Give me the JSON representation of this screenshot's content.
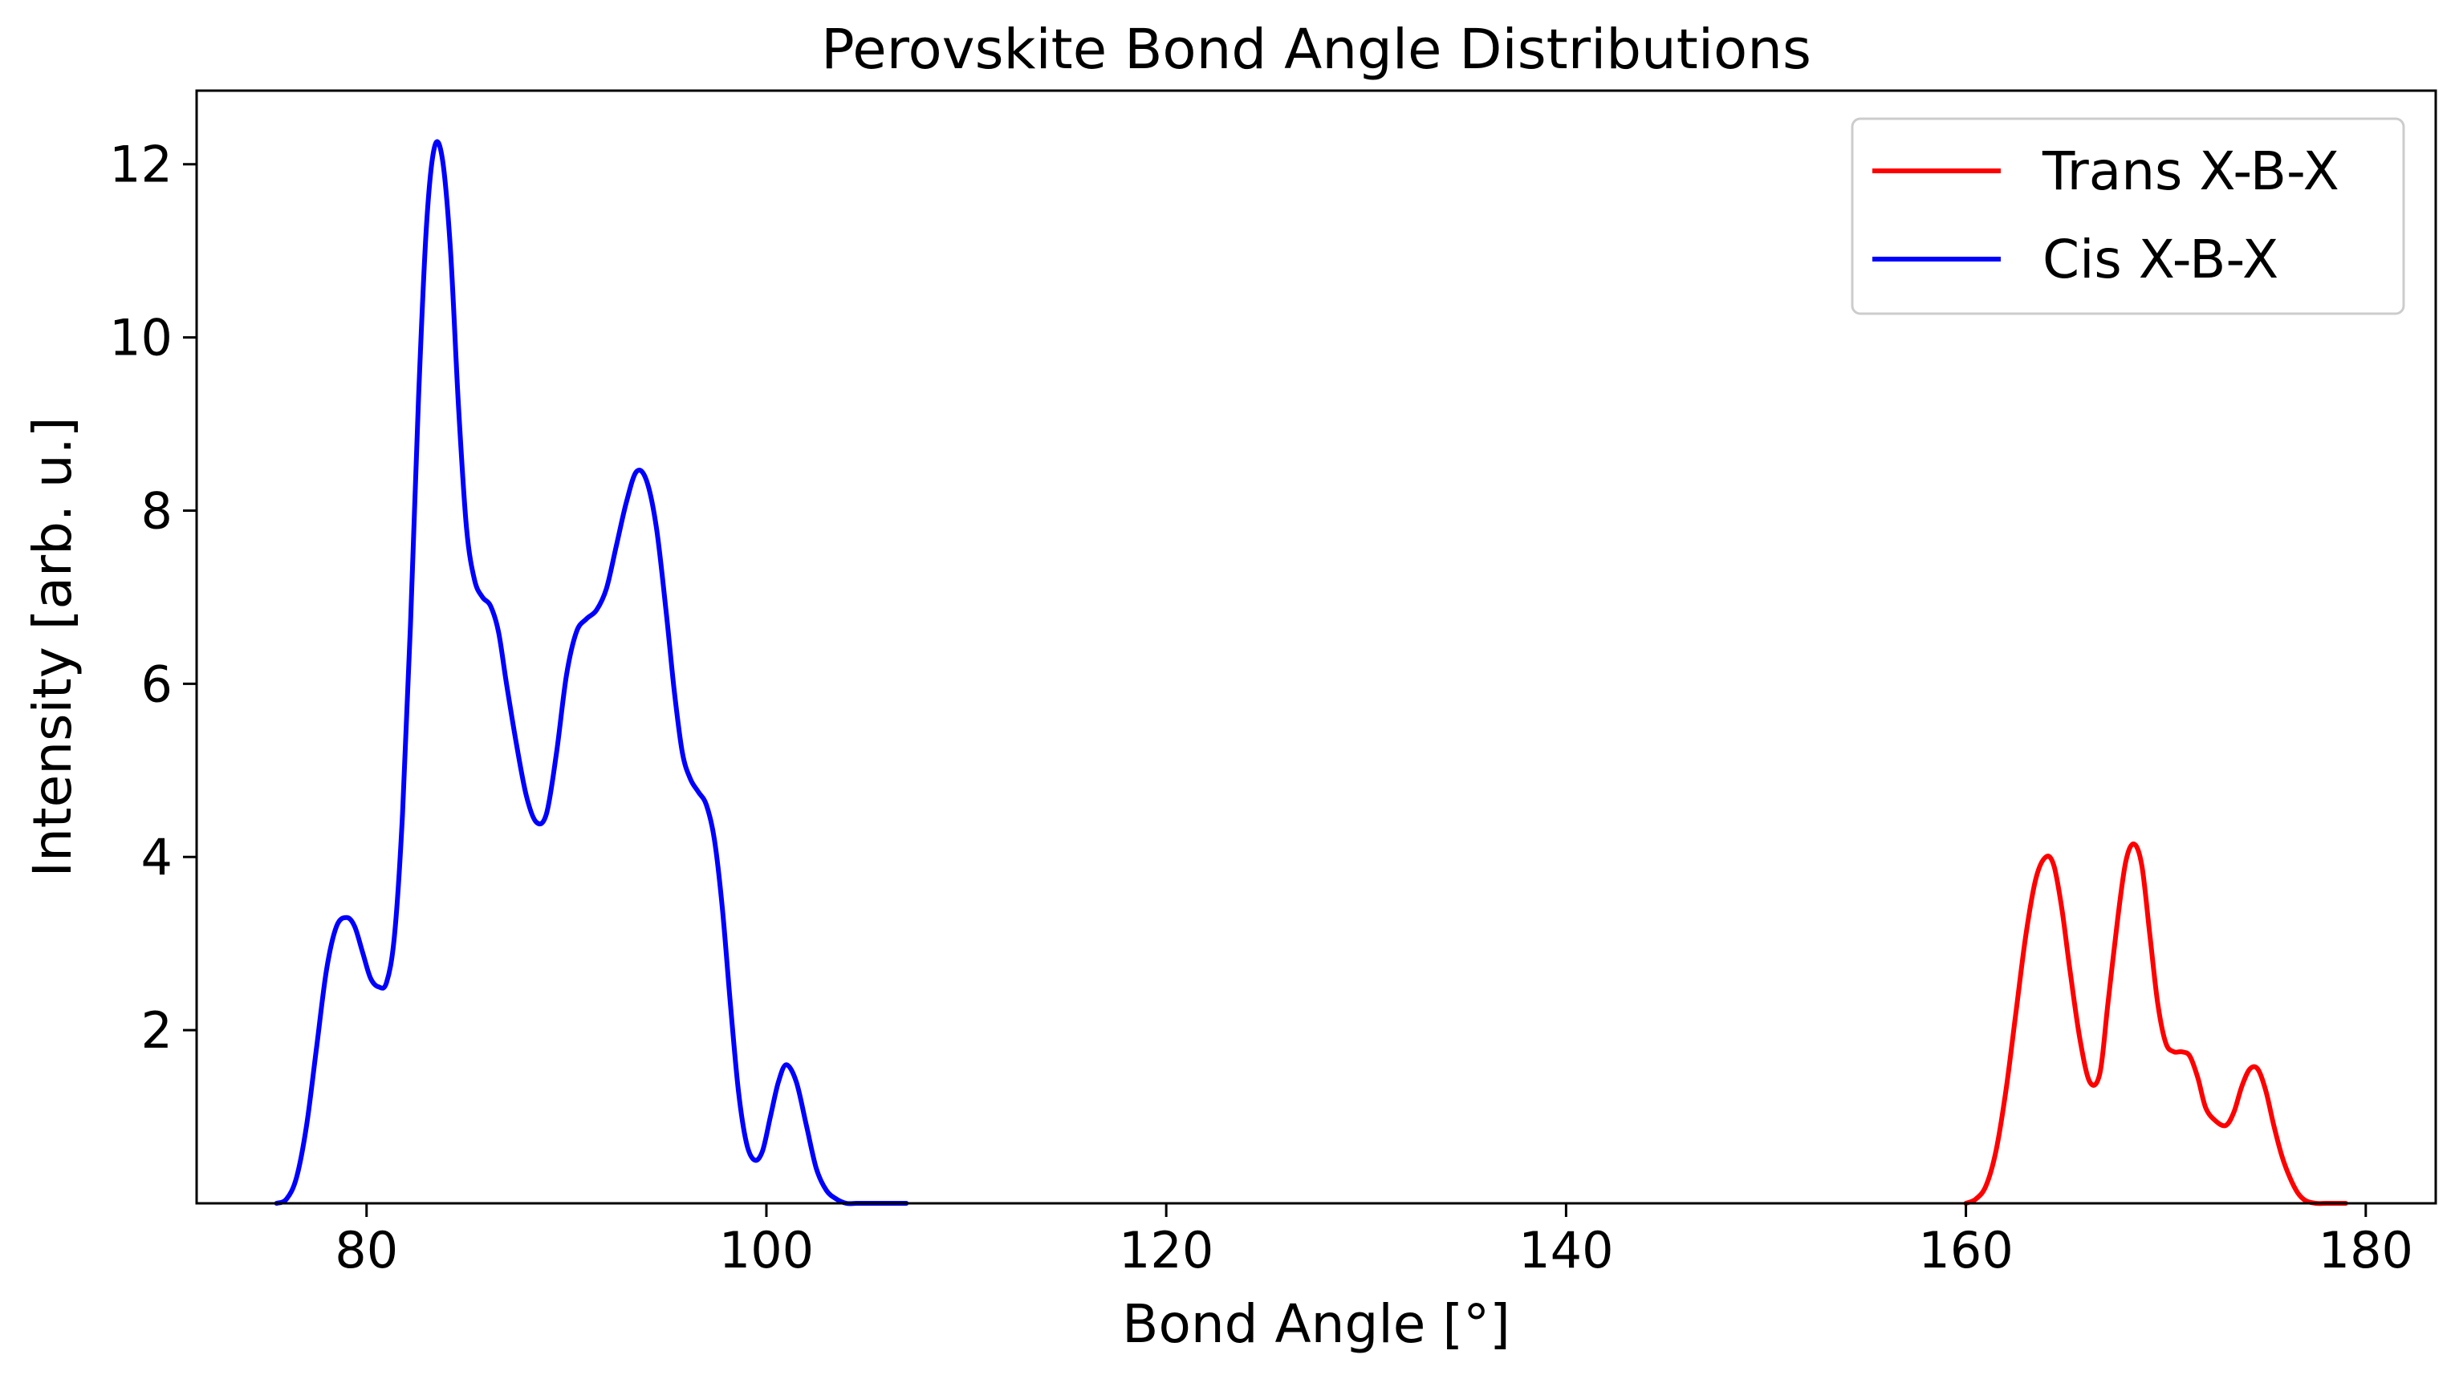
{
  "chart_data": {
    "type": "line",
    "title": "Perovskite Bond Angle Distributions",
    "xlabel": "Bond Angle [°]",
    "ylabel": "Intensity [arb. u.]",
    "xlim": [
      71.5,
      183.5
    ],
    "ylim": [
      0,
      12.85
    ],
    "xticks": [
      80,
      100,
      120,
      140,
      160,
      180
    ],
    "yticks": [
      2,
      4,
      6,
      8,
      10,
      12
    ],
    "grid": false,
    "legend": "top-right",
    "series": [
      {
        "name": "Trans X-B-X",
        "color": "#ff0000",
        "x": [
          160.0,
          160.5,
          161.0,
          161.5,
          162.0,
          162.5,
          163.0,
          163.5,
          164.0,
          164.4,
          164.8,
          165.2,
          165.7,
          166.2,
          166.7,
          167.1,
          167.6,
          168.0,
          168.4,
          168.8,
          169.2,
          169.6,
          170.0,
          170.4,
          170.8,
          171.2,
          171.6,
          172.0,
          172.5,
          173.0,
          173.4,
          173.8,
          174.2,
          174.6,
          175.0,
          175.4,
          175.8,
          176.2,
          176.6,
          177.0,
          177.5,
          178.0,
          178.5,
          179.0
        ],
        "values": [
          0.0,
          0.05,
          0.2,
          0.6,
          1.3,
          2.2,
          3.1,
          3.75,
          4.0,
          3.9,
          3.4,
          2.7,
          1.9,
          1.4,
          1.5,
          2.3,
          3.3,
          3.95,
          4.15,
          3.9,
          3.1,
          2.3,
          1.85,
          1.75,
          1.75,
          1.7,
          1.45,
          1.1,
          0.95,
          0.9,
          1.05,
          1.35,
          1.55,
          1.55,
          1.3,
          0.9,
          0.55,
          0.3,
          0.12,
          0.03,
          0.0,
          0.0,
          0.0,
          0.0
        ]
      },
      {
        "name": "Cis X-B-X",
        "color": "#0000ff",
        "x": [
          75.5,
          76.0,
          76.5,
          77.0,
          77.5,
          78.0,
          78.5,
          79.0,
          79.4,
          79.8,
          80.2,
          80.6,
          81.0,
          81.4,
          81.8,
          82.2,
          82.6,
          83.0,
          83.4,
          83.8,
          84.2,
          84.6,
          85.0,
          85.4,
          85.8,
          86.2,
          86.6,
          87.0,
          87.5,
          88.0,
          88.5,
          89.0,
          89.5,
          90.0,
          90.5,
          91.0,
          91.5,
          92.0,
          92.5,
          93.0,
          93.5,
          94.0,
          94.5,
          95.0,
          95.4,
          95.8,
          96.2,
          96.6,
          97.0,
          97.4,
          97.8,
          98.2,
          98.6,
          99.0,
          99.4,
          99.8,
          100.2,
          100.6,
          101.0,
          101.5,
          102.0,
          102.5,
          103.0,
          103.5,
          104.0,
          104.5,
          105.0,
          105.5,
          106.0,
          106.5,
          107.0
        ],
        "values": [
          0.0,
          0.05,
          0.3,
          0.9,
          1.8,
          2.7,
          3.2,
          3.3,
          3.2,
          2.9,
          2.6,
          2.5,
          2.55,
          3.1,
          4.5,
          6.7,
          9.3,
          11.3,
          12.2,
          12.05,
          11.0,
          9.2,
          7.8,
          7.2,
          7.0,
          6.9,
          6.6,
          6.0,
          5.3,
          4.7,
          4.4,
          4.5,
          5.2,
          6.1,
          6.6,
          6.75,
          6.85,
          7.1,
          7.6,
          8.1,
          8.45,
          8.35,
          7.8,
          6.8,
          5.9,
          5.2,
          4.9,
          4.75,
          4.6,
          4.2,
          3.4,
          2.3,
          1.3,
          0.7,
          0.5,
          0.6,
          1.0,
          1.4,
          1.6,
          1.4,
          0.9,
          0.4,
          0.15,
          0.05,
          0.0,
          0.0,
          0.0,
          0.0,
          0.0,
          0.0,
          0.0
        ]
      }
    ]
  }
}
